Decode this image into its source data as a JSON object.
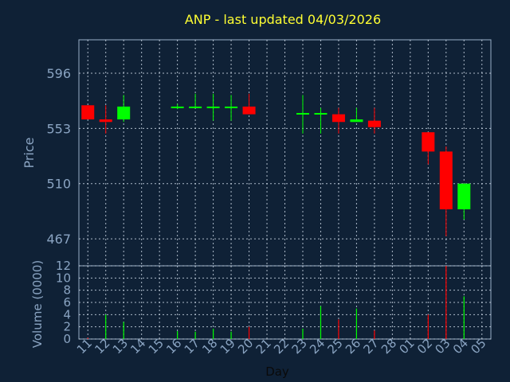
{
  "chart_data": [
    {
      "type": "candlestick",
      "title": "ANP - last updated 04/03/2026",
      "xlabel": "Day",
      "ylabel": "Price",
      "ylim": [
        446,
        622
      ],
      "yticks": [
        467,
        510,
        553,
        596
      ],
      "grid": true,
      "colors": {
        "up": "#00ff00",
        "down": "#ff0000",
        "title": "#ffff33",
        "axis_text": "#8aa4c2",
        "background": "#0f2136"
      },
      "categories": [
        "11",
        "12",
        "13",
        "14",
        "15",
        "16",
        "17",
        "18",
        "19",
        "20",
        "21",
        "22",
        "23",
        "24",
        "25",
        "26",
        "27",
        "28",
        "01",
        "02",
        "03",
        "04",
        "05"
      ],
      "candles": [
        {
          "x": "11",
          "open": 571,
          "high": 571,
          "low": 560,
          "close": 560
        },
        {
          "x": "12",
          "open": 560,
          "high": 571,
          "low": 549,
          "close": 558
        },
        {
          "x": "13",
          "open": 560,
          "high": 579,
          "low": 558,
          "close": 570
        },
        {
          "x": "16",
          "open": 570,
          "high": 572,
          "low": 568,
          "close": 570
        },
        {
          "x": "17",
          "open": 570,
          "high": 580,
          "low": 569,
          "close": 570
        },
        {
          "x": "18",
          "open": 569,
          "high": 580,
          "low": 559,
          "close": 570
        },
        {
          "x": "19",
          "open": 569,
          "high": 579,
          "low": 559,
          "close": 570
        },
        {
          "x": "20",
          "open": 570,
          "high": 580,
          "low": 564,
          "close": 564
        },
        {
          "x": "23",
          "open": 564,
          "high": 579,
          "low": 549,
          "close": 565
        },
        {
          "x": "24",
          "open": 564,
          "high": 569,
          "low": 549,
          "close": 565
        },
        {
          "x": "25",
          "open": 564,
          "high": 569,
          "low": 549,
          "close": 558
        },
        {
          "x": "26",
          "open": 558,
          "high": 569,
          "low": 558,
          "close": 560
        },
        {
          "x": "27",
          "open": 559,
          "high": 569,
          "low": 549,
          "close": 554
        },
        {
          "x": "02",
          "open": 550,
          "high": 550,
          "low": 525,
          "close": 535
        },
        {
          "x": "03",
          "open": 535,
          "high": 539,
          "low": 469,
          "close": 490
        },
        {
          "x": "04",
          "open": 490,
          "high": 510,
          "low": 482,
          "close": 510
        }
      ]
    },
    {
      "type": "bar",
      "title": "",
      "xlabel": "Day",
      "ylabel": "Volume (0000)",
      "ylim": [
        0,
        12
      ],
      "yticks": [
        0,
        2,
        4,
        6,
        8,
        10,
        12
      ],
      "grid": true,
      "categories": [
        "11",
        "12",
        "13",
        "14",
        "15",
        "16",
        "17",
        "18",
        "19",
        "20",
        "21",
        "22",
        "23",
        "24",
        "25",
        "26",
        "27",
        "28",
        "01",
        "02",
        "03",
        "04",
        "05"
      ],
      "bars": [
        {
          "x": "11",
          "value": 0.2,
          "direction": "down"
        },
        {
          "x": "12",
          "value": 4,
          "direction": "up"
        },
        {
          "x": "13",
          "value": 2.8,
          "direction": "up"
        },
        {
          "x": "16",
          "value": 1.3,
          "direction": "up"
        },
        {
          "x": "17",
          "value": 1.2,
          "direction": "up"
        },
        {
          "x": "18",
          "value": 1.7,
          "direction": "up"
        },
        {
          "x": "19",
          "value": 1.2,
          "direction": "up"
        },
        {
          "x": "20",
          "value": 2,
          "direction": "down"
        },
        {
          "x": "23",
          "value": 1.7,
          "direction": "up"
        },
        {
          "x": "24",
          "value": 5.4,
          "direction": "up"
        },
        {
          "x": "25",
          "value": 3.2,
          "direction": "down"
        },
        {
          "x": "26",
          "value": 5,
          "direction": "up"
        },
        {
          "x": "27",
          "value": 1.4,
          "direction": "down"
        },
        {
          "x": "02",
          "value": 4,
          "direction": "down"
        },
        {
          "x": "03",
          "value": 12,
          "direction": "down"
        },
        {
          "x": "04",
          "value": 7,
          "direction": "up"
        }
      ]
    }
  ]
}
